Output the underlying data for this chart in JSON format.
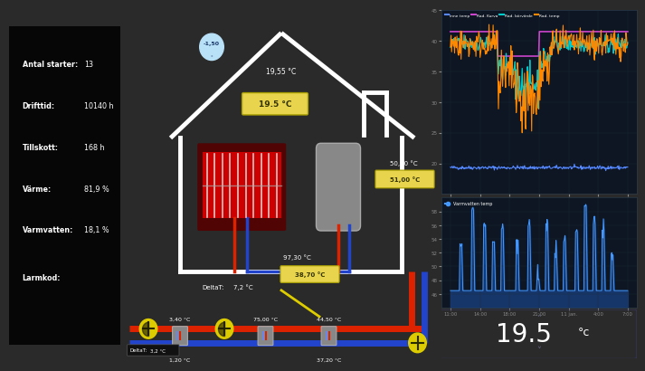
{
  "bg_color": "#2a2a2a",
  "panel_bg": "#0a0a0a",
  "text_color": "#ffffff",
  "accent_yellow": "#e8d44d",
  "accent_red": "#dd2200",
  "accent_blue": "#2244cc",
  "pipe_red": "#dd2200",
  "pipe_blue": "#2244cc",
  "info_labels": [
    "Antal starter:",
    "Drifttid:",
    "Tillskott:",
    "Värme:",
    "Varmvatten:",
    "Larmkod:"
  ],
  "info_values": [
    "13",
    "10140 h",
    "168 h",
    "81,9 %",
    "18,1 %",
    ""
  ],
  "temp_outdoor": "-1,50",
  "temp_top": "19,55 °C",
  "temp_room": "19.5 °C",
  "temp_rad_flow": "50,90 °C",
  "temp_rad_return": "51,00 °C",
  "temp_delta1": "97,30 °C",
  "temp_delta2_val": "38,70 °C",
  "delta_T1_label": "DeltaT:",
  "delta_T1_val": "7,2 °C",
  "temp_pipe1": "3,40 °C",
  "temp_pipe2": "75,00 °C",
  "temp_pipe3": "44,50 °C",
  "temp_delta_bot_label": "DeltaT:",
  "temp_delta_bot_val": "3,2 °C",
  "temp_bot1": "1,20 °C",
  "temp_bot2": "37,20 °C",
  "time_labels": [
    "11:00",
    "14:00",
    "18:00",
    "21:00",
    "11 jan.",
    "4:00",
    "7:00"
  ],
  "legend1": [
    "Inne temp",
    "Rad. Kurva",
    "Rad. börvärde",
    "Rad. temp"
  ],
  "legend1_colors": [
    "#5588ff",
    "#cc44cc",
    "#00cccc",
    "#ff8800"
  ],
  "legend2_label": "Varmvatten temp",
  "chart1_ylim": [
    15,
    45
  ],
  "chart1_yticks": [
    20,
    25,
    30,
    35,
    40,
    45
  ],
  "chart2_ylim": [
    44,
    60
  ],
  "chart2_yticks": [
    46,
    48,
    50,
    52,
    54,
    56,
    58
  ],
  "display_temp": "19.5"
}
